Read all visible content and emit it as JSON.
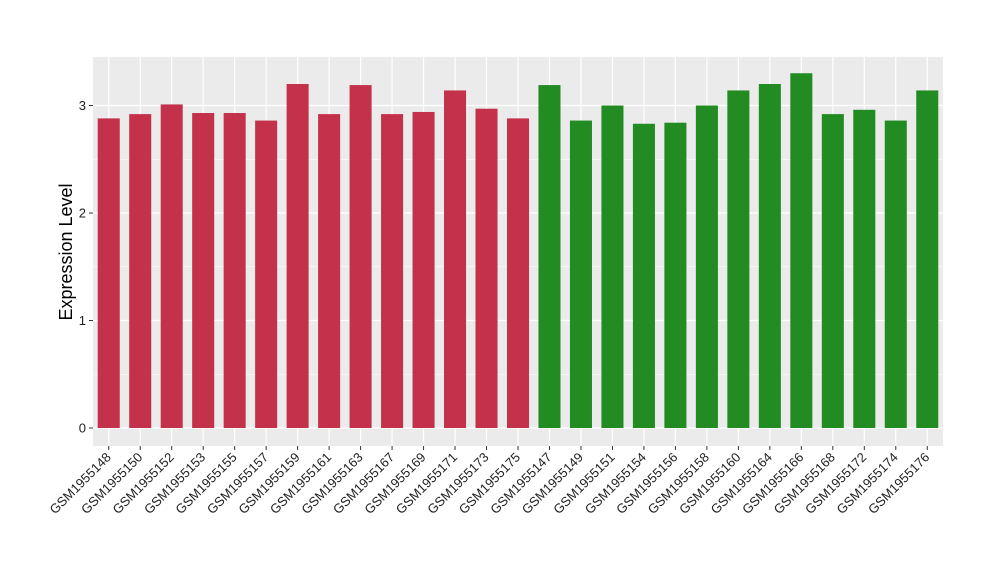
{
  "chart_data": {
    "type": "bar",
    "title": "",
    "xlabel": "",
    "ylabel": "Expression Level",
    "ylim": [
      0,
      3.45
    ],
    "y_ticks": [
      0,
      1,
      2,
      3
    ],
    "y_tick_labels": [
      "0",
      "1",
      "2",
      "3"
    ],
    "grid": true,
    "legend": "none",
    "colors": {
      "group_1": "#C4314B",
      "group_2": "#228B22",
      "panel_background": "#EBEBEB",
      "grid": "#FFFFFF"
    },
    "categories": [
      "GSM1955148",
      "GSM1955150",
      "GSM1955152",
      "GSM1955153",
      "GSM1955155",
      "GSM1955157",
      "GSM1955159",
      "GSM1955161",
      "GSM1955163",
      "GSM1955167",
      "GSM1955169",
      "GSM1955171",
      "GSM1955173",
      "GSM1955175",
      "GSM1955147",
      "GSM1955149",
      "GSM1955151",
      "GSM1955154",
      "GSM1955156",
      "GSM1955158",
      "GSM1955160",
      "GSM1955164",
      "GSM1955166",
      "GSM1955168",
      "GSM1955172",
      "GSM1955174",
      "GSM1955176"
    ],
    "values": [
      2.88,
      2.92,
      3.01,
      2.93,
      2.93,
      2.86,
      3.2,
      2.92,
      3.19,
      2.92,
      2.94,
      3.14,
      2.97,
      2.88,
      3.19,
      2.86,
      3.0,
      2.83,
      2.84,
      3.0,
      3.14,
      3.2,
      3.3,
      2.92,
      2.96,
      2.86,
      3.14
    ],
    "groups": [
      1,
      1,
      1,
      1,
      1,
      1,
      1,
      1,
      1,
      1,
      1,
      1,
      1,
      1,
      2,
      2,
      2,
      2,
      2,
      2,
      2,
      2,
      2,
      2,
      2,
      2,
      2
    ]
  }
}
